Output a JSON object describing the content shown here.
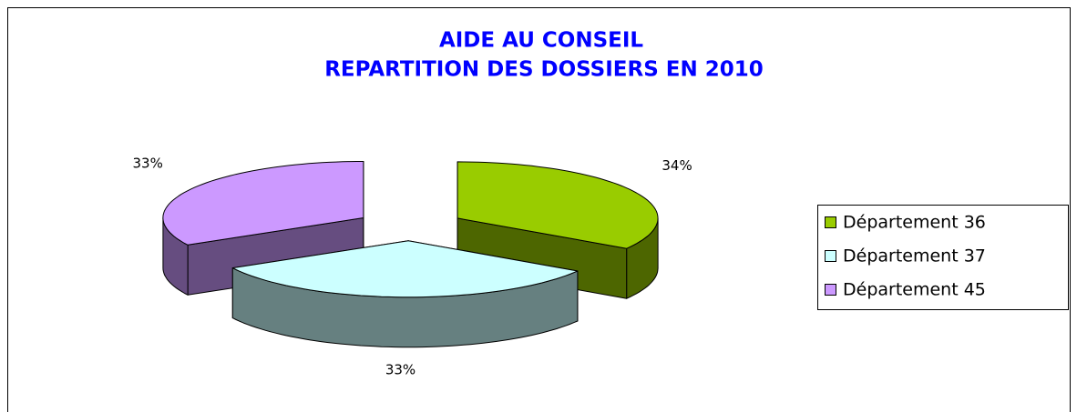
{
  "chart_data": {
    "type": "pie3d",
    "title": "AIDE AU CONSEIL",
    "subtitle": "REPARTITION DES DOSSIERS EN 2010",
    "categories": [
      "Département 36",
      "Département 37",
      "Département 45"
    ],
    "values": [
      34,
      33,
      33
    ],
    "value_labels": [
      "34%",
      "33%",
      "33%"
    ],
    "colors": [
      "#99cc00",
      "#ccffff",
      "#cc99ff"
    ],
    "legend": "right"
  }
}
